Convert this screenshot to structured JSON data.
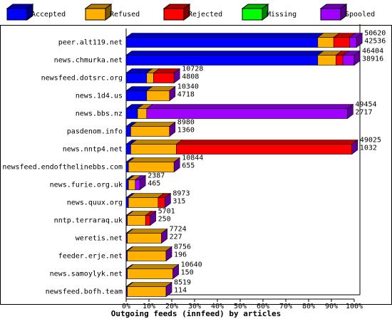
{
  "chart_data": {
    "type": "bar",
    "orientation": "horizontal",
    "stacked": true,
    "x_label": "Outgoing feeds (innfeed) by articles",
    "categories": [
      "peer.alt119.net",
      "news.chmurka.net",
      "newsfeed.dotsrc.org",
      "news.1d4.us",
      "news.bbs.nz",
      "pasdenom.info",
      "news.nntp4.net",
      "newsfeed.endofthelinebbs.com",
      "news.furie.org.uk",
      "news.quux.org",
      "nntp.terraraq.uk",
      "weretis.net",
      "feeder.erje.net",
      "news.samoylyk.net",
      "newsfeed.bofh.team"
    ],
    "series": [
      {
        "name": "Accepted",
        "color": "#0000ff",
        "values": [
          84,
          84,
          9,
          9,
          5,
          2,
          2,
          1,
          1,
          1,
          0.5,
          0.5,
          0.5,
          0.5,
          0.5
        ]
      },
      {
        "name": "Refused",
        "color": "#ffb000",
        "values": [
          7,
          8,
          3,
          10,
          4,
          17,
          20,
          20,
          3,
          13,
          8,
          15,
          17,
          20,
          17
        ]
      },
      {
        "name": "Rejected",
        "color": "#ff0000",
        "values": [
          7,
          3,
          9,
          0,
          0,
          0,
          77,
          0,
          0,
          3,
          2,
          0,
          0,
          0,
          0
        ]
      },
      {
        "name": "Missing",
        "color": "#00ff00",
        "values": [
          0,
          0,
          0,
          0,
          0,
          0,
          0,
          0,
          0,
          0,
          0,
          0,
          0,
          0,
          0
        ]
      },
      {
        "name": "Spooled",
        "color": "#a000ff",
        "values": [
          3,
          5,
          0,
          0,
          88,
          0,
          0,
          0,
          2,
          0,
          0,
          0,
          0,
          0,
          0
        ]
      }
    ],
    "numbers": [
      [
        50620,
        42536
      ],
      [
        46404,
        38916
      ],
      [
        10728,
        4808
      ],
      [
        10340,
        4718
      ],
      [
        49454,
        2717
      ],
      [
        8980,
        1360
      ],
      [
        49025,
        1032
      ],
      [
        10844,
        655
      ],
      [
        2387,
        465
      ],
      [
        8973,
        315
      ],
      [
        5701,
        250
      ],
      [
        7724,
        227
      ],
      [
        8756,
        196
      ],
      [
        10640,
        150
      ],
      [
        8519,
        114
      ]
    ],
    "xlim": [
      0,
      100
    ],
    "xticks": [
      {
        "value": 0,
        "label": "0%"
      },
      {
        "value": 10,
        "label": "10%"
      },
      {
        "value": 20,
        "label": "20%"
      },
      {
        "value": 30,
        "label": "30%"
      },
      {
        "value": 40,
        "label": "40%"
      },
      {
        "value": 50,
        "label": "50%"
      },
      {
        "value": 60,
        "label": "60%"
      },
      {
        "value": 70,
        "label": "70%"
      },
      {
        "value": 80,
        "label": "80%"
      },
      {
        "value": 90,
        "label": "90%"
      },
      {
        "value": 100,
        "label": "100%"
      }
    ]
  }
}
